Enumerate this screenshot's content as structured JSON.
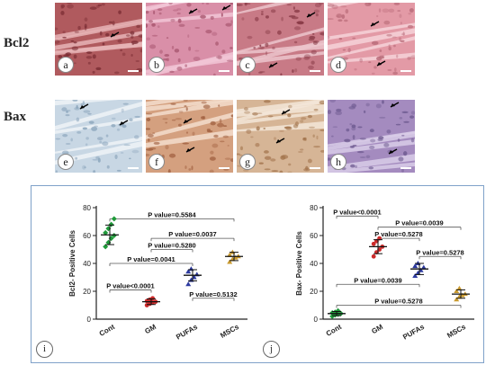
{
  "rows": [
    {
      "label": "Bcl2",
      "panels": [
        {
          "letter": "a",
          "base": "#b05a5e",
          "light": "#e8b4b6",
          "dark": "#7a2c33",
          "arrows": [
            [
              62,
              38
            ]
          ]
        },
        {
          "letter": "b",
          "base": "#d98fa8",
          "light": "#f1c6d6",
          "dark": "#a8566f",
          "arrows": [
            [
              48,
              12
            ],
            [
              85,
              8
            ]
          ]
        },
        {
          "letter": "c",
          "base": "#c87a86",
          "light": "#ecc6cc",
          "dark": "#8a3c48",
          "arrows": [
            [
              78,
              16
            ],
            [
              36,
              72
            ]
          ]
        },
        {
          "letter": "d",
          "base": "#e39aa6",
          "light": "#f6d2d8",
          "dark": "#b96b79",
          "arrows": [
            [
              48,
              26
            ],
            [
              55,
              70
            ]
          ]
        }
      ]
    },
    {
      "label": "Bax",
      "panels": [
        {
          "letter": "e",
          "base": "#c8d7e4",
          "light": "#eef3f7",
          "dark": "#8aa4bb",
          "arrows": [
            [
              28,
              10
            ],
            [
              72,
              28
            ]
          ]
        },
        {
          "letter": "f",
          "base": "#d4a07f",
          "light": "#f3ddcc",
          "dark": "#9f5e3e",
          "arrows": [
            [
              42,
              26
            ],
            [
              45,
              58
            ]
          ]
        },
        {
          "letter": "g",
          "base": "#d6b596",
          "light": "#f3e6d8",
          "dark": "#a3754e",
          "arrows": [
            [
              50,
              16
            ],
            [
              44,
              48
            ]
          ]
        },
        {
          "letter": "h",
          "base": "#a48bbf",
          "light": "#d9cce8",
          "dark": "#6e5a90",
          "arrows": [
            [
              70,
              8
            ],
            [
              68,
              60
            ]
          ]
        }
      ]
    }
  ],
  "chart_data": [
    {
      "type": "scatter",
      "letter": "i",
      "ylabel": "Bcl2- Positive Cells",
      "ylim": [
        0,
        80
      ],
      "yticks": [
        0,
        20,
        40,
        60,
        80
      ],
      "categories": [
        "Cont",
        "GM",
        "PUFAs",
        "MSCs"
      ],
      "colors": [
        "#1f9a3a",
        "#cc2a2a",
        "#2d3aa0",
        "#c99a2e"
      ],
      "markers": [
        "diamond",
        "circle",
        "triangle",
        "triangle"
      ],
      "means": [
        60.5,
        12.5,
        31.5,
        45
      ],
      "sd": [
        7,
        2,
        4,
        3
      ],
      "points": [
        [
          52,
          55,
          58,
          60,
          62,
          65,
          68,
          72
        ],
        [
          10,
          11,
          12,
          12.5,
          13,
          14,
          15
        ],
        [
          25,
          28,
          30,
          32,
          34,
          36
        ],
        [
          41,
          43,
          44,
          45,
          46,
          48
        ]
      ],
      "comparisons": [
        {
          "text": "P value=0.5584",
          "from": "Cont",
          "to": "MSCs",
          "y": 72
        },
        {
          "text": "P value=0.0037",
          "from": "GM",
          "to": "MSCs",
          "y": 58
        },
        {
          "text": "P value=0.5280",
          "from": "GM",
          "to": "PUFAs",
          "y": 50
        },
        {
          "text": "P value=0.0041",
          "from": "Cont",
          "to": "PUFAs",
          "y": 40
        },
        {
          "text": "P value<0.0001",
          "from": "Cont",
          "to": "GM",
          "y": 21
        },
        {
          "text": "P value=0.5132",
          "from": "PUFAs",
          "to": "MSCs",
          "y": 15
        }
      ]
    },
    {
      "type": "scatter",
      "letter": "j",
      "ylabel": "Bax- Positive Cells",
      "ylim": [
        0,
        80
      ],
      "yticks": [
        0,
        20,
        40,
        60,
        80
      ],
      "categories": [
        "Cont",
        "GM",
        "PUFAs",
        "MSCs"
      ],
      "colors": [
        "#1f9a3a",
        "#cc2a2a",
        "#2d3aa0",
        "#c99a2e"
      ],
      "markers": [
        "diamond",
        "circle",
        "triangle",
        "triangle"
      ],
      "means": [
        4,
        52,
        36,
        18
      ],
      "sd": [
        1.5,
        5,
        4,
        3
      ],
      "points": [
        [
          2,
          3,
          3.5,
          4,
          4.5,
          5,
          6
        ],
        [
          45,
          48,
          50,
          52,
          54,
          56,
          58
        ],
        [
          31,
          33,
          35,
          37,
          38,
          40
        ],
        [
          14,
          16,
          17,
          18,
          20,
          22
        ]
      ],
      "comparisons": [
        {
          "text": "P value<0.0001",
          "from": "Cont",
          "to": "GM",
          "y": 74
        },
        {
          "text": "P value=0.0039",
          "from": "GM",
          "to": "MSCs",
          "y": 66
        },
        {
          "text": "P value=0.5278",
          "from": "GM",
          "to": "PUFAs",
          "y": 58
        },
        {
          "text": "P value=0.5278",
          "from": "PUFAs",
          "to": "MSCs",
          "y": 45
        },
        {
          "text": "P value=0.0039",
          "from": "Cont",
          "to": "PUFAs",
          "y": 25
        },
        {
          "text": "P value=0.5278",
          "from": "Cont",
          "to": "MSCs",
          "y": 10
        }
      ]
    }
  ]
}
